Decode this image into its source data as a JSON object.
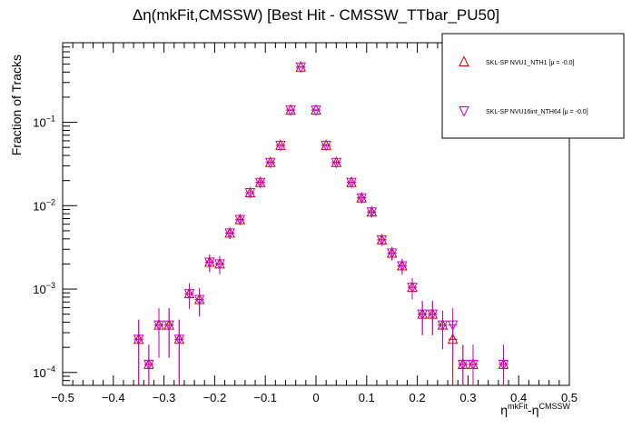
{
  "chart_data": {
    "type": "scatter",
    "title": "Δη(mkFit,CMSSW) [Best Hit - CMSSW_TTbar_PU50]",
    "xlabel": "η^{mkFit}-η^{CMSSW}",
    "ylabel": "Fraction of Tracks",
    "xlim": [
      -0.5,
      0.5
    ],
    "ylim": [
      7e-05,
      0.9
    ],
    "yscale": "log",
    "x_ticks": [
      "−0.5",
      "−0.4",
      "−0.3",
      "−0.2",
      "−0.1",
      "0",
      "0.1",
      "0.2",
      "0.3",
      "0.4",
      "0.5"
    ],
    "y_ticks": [
      {
        "value": 0.0001,
        "mantissa": "10",
        "exp": "−4"
      },
      {
        "value": 0.001,
        "mantissa": "10",
        "exp": "−3"
      },
      {
        "value": 0.01,
        "mantissa": "10",
        "exp": "−2"
      },
      {
        "value": 0.1,
        "mantissa": "10",
        "exp": "−1"
      }
    ],
    "legend_position": "top-right",
    "series": [
      {
        "name": "SKL-SP NVU1_NTH1 [μ = -0.0]",
        "marker": "triangle-up",
        "color": "#cc0000",
        "x": [
          -0.35,
          -0.33,
          -0.31,
          -0.29,
          -0.27,
          -0.25,
          -0.23,
          -0.21,
          -0.19,
          -0.17,
          -0.15,
          -0.13,
          -0.11,
          -0.09,
          -0.07,
          -0.05,
          -0.03,
          0.0,
          0.02,
          0.04,
          0.07,
          0.09,
          0.11,
          0.13,
          0.15,
          0.17,
          0.19,
          0.21,
          0.23,
          0.25,
          0.27,
          0.29,
          0.31,
          0.37
        ],
        "y": [
          0.00025,
          0.000125,
          0.00037,
          0.00037,
          0.00025,
          0.00088,
          0.00075,
          0.0021,
          0.002,
          0.0047,
          0.0068,
          0.0143,
          0.019,
          0.033,
          0.053,
          0.14,
          0.46,
          0.14,
          0.053,
          0.033,
          0.019,
          0.0124,
          0.0084,
          0.0039,
          0.0027,
          0.0019,
          0.00105,
          0.0005,
          0.0005,
          0.00037,
          0.00025,
          0.000125,
          0.000125,
          0.000125
        ],
        "yerr": [
          0.00018,
          9e-05,
          0.00022,
          0.00022,
          0.00018,
          0.0003,
          0.00028,
          0.0005,
          0.0005,
          0.0007,
          0.0008,
          0.0012,
          0.0014,
          0.002,
          0.0025,
          0.004,
          0.008,
          0.004,
          0.0025,
          0.002,
          0.0014,
          0.0011,
          0.0009,
          0.0006,
          0.0005,
          0.0004,
          0.0003,
          0.00022,
          0.00022,
          0.00018,
          0.00018,
          9e-05,
          9e-05,
          9e-05
        ]
      },
      {
        "name": "SKL-SP NVU16int_NTH64 [μ = -0.0]",
        "marker": "triangle-down",
        "color": "#cc00cc",
        "x": [
          -0.35,
          -0.33,
          -0.31,
          -0.29,
          -0.27,
          -0.25,
          -0.23,
          -0.21,
          -0.19,
          -0.17,
          -0.15,
          -0.13,
          -0.11,
          -0.09,
          -0.07,
          -0.05,
          -0.03,
          0.0,
          0.02,
          0.04,
          0.07,
          0.09,
          0.11,
          0.13,
          0.15,
          0.17,
          0.19,
          0.21,
          0.23,
          0.25,
          0.27,
          0.29,
          0.31,
          0.37
        ],
        "y": [
          0.00025,
          0.000125,
          0.00037,
          0.00037,
          0.00025,
          0.00088,
          0.00075,
          0.0021,
          0.002,
          0.0047,
          0.0068,
          0.0143,
          0.019,
          0.033,
          0.053,
          0.14,
          0.46,
          0.14,
          0.053,
          0.033,
          0.019,
          0.0124,
          0.0084,
          0.0039,
          0.0027,
          0.0019,
          0.00105,
          0.0005,
          0.0005,
          0.00037,
          0.00037,
          0.000125,
          0.000125,
          0.000125
        ],
        "yerr": [
          0.00018,
          9e-05,
          0.00022,
          0.00022,
          0.00018,
          0.0003,
          0.00028,
          0.0005,
          0.0005,
          0.0007,
          0.0008,
          0.0012,
          0.0014,
          0.002,
          0.0025,
          0.004,
          0.008,
          0.004,
          0.0025,
          0.002,
          0.0014,
          0.0011,
          0.0009,
          0.0006,
          0.0005,
          0.0004,
          0.0003,
          0.00022,
          0.00022,
          0.00018,
          0.00022,
          9e-05,
          9e-05,
          9e-05
        ]
      }
    ],
    "legend_box": "framed-white",
    "colors": {
      "axis": "#000000",
      "background": "#ffffff"
    }
  }
}
